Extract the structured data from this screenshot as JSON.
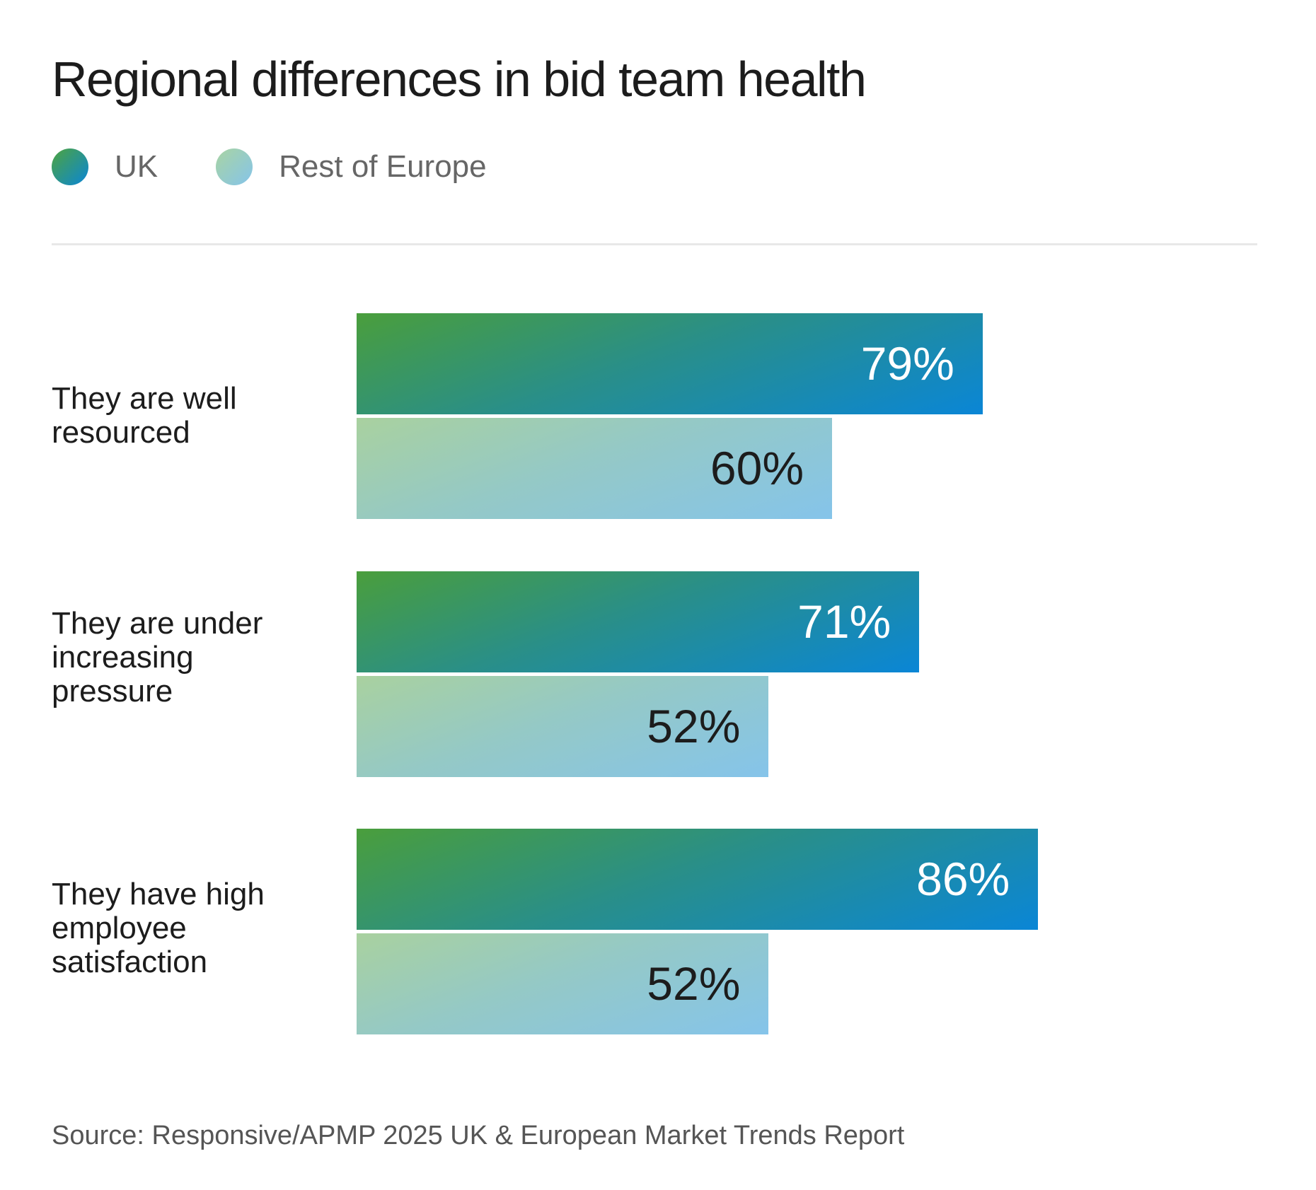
{
  "colors": {
    "uk_start": "#4ea43e",
    "uk_end": "#0a86d6",
    "eu_start": "#a9d4a2",
    "eu_end": "#85c4ea"
  },
  "chart_data": {
    "type": "bar",
    "orientation": "horizontal",
    "title": "Regional differences in bid team health",
    "legend": [
      "UK",
      "Rest of Europe"
    ],
    "legend_position": "top-left",
    "categories": [
      "They are well resourced",
      "They are under increasing pressure",
      "They have high employee satisfaction"
    ],
    "series": [
      {
        "name": "UK",
        "values": [
          79,
          71,
          86
        ],
        "labels": [
          "79%",
          "71%",
          "86%"
        ]
      },
      {
        "name": "Rest of Europe",
        "values": [
          60,
          52,
          52
        ],
        "labels": [
          "60%",
          "52%",
          "52%"
        ]
      }
    ],
    "xlim": [
      0,
      100
    ],
    "grid": false,
    "source": "Source: Responsive/APMP 2025 UK & European Market Trends Report"
  }
}
